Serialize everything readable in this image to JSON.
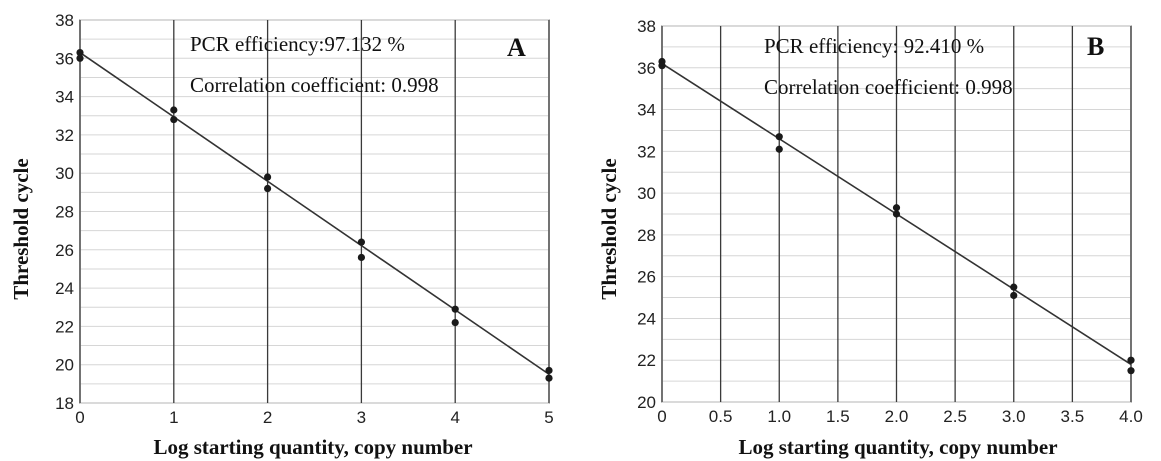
{
  "chart_data": [
    {
      "type": "scatter",
      "panel_label": "A",
      "xlabel": "Log starting quantity, copy number",
      "ylabel": "Threshold cycle",
      "xlim": [
        0,
        5
      ],
      "ylim": [
        18,
        38
      ],
      "xticks": [
        "0",
        "1",
        "2",
        "3",
        "4",
        "5"
      ],
      "yticks": [
        "18",
        "20",
        "22",
        "24",
        "26",
        "28",
        "30",
        "32",
        "34",
        "36",
        "38"
      ],
      "grid": true,
      "annotations": [
        "PCR efficiency:97.132 %",
        "Correlation coefficient: 0.998"
      ],
      "points": [
        {
          "x": 0,
          "y": 36.3
        },
        {
          "x": 0,
          "y": 36.0
        },
        {
          "x": 1,
          "y": 33.3
        },
        {
          "x": 1,
          "y": 32.8
        },
        {
          "x": 2,
          "y": 29.8
        },
        {
          "x": 2,
          "y": 29.2
        },
        {
          "x": 3,
          "y": 26.4
        },
        {
          "x": 3,
          "y": 25.6
        },
        {
          "x": 4,
          "y": 22.9
        },
        {
          "x": 4,
          "y": 22.2
        },
        {
          "x": 5,
          "y": 19.7
        },
        {
          "x": 5,
          "y": 19.3
        }
      ],
      "fit_line": [
        {
          "x": 0,
          "y": 36.3
        },
        {
          "x": 5,
          "y": 19.5
        }
      ]
    },
    {
      "type": "scatter",
      "panel_label": "B",
      "xlabel": "Log starting quantity, copy number",
      "ylabel": "Threshold cycle",
      "xlim": [
        0,
        4
      ],
      "ylim": [
        20,
        38
      ],
      "xticks": [
        "0",
        "0.5",
        "1.0",
        "1.5",
        "2.0",
        "2.5",
        "3.0",
        "3.5",
        "4.0"
      ],
      "yticks": [
        "20",
        "22",
        "24",
        "26",
        "28",
        "30",
        "32",
        "34",
        "36",
        "38"
      ],
      "grid": true,
      "annotations": [
        "PCR efficiency:  92.410 %",
        "Correlation coefficient: 0.998"
      ],
      "points": [
        {
          "x": 0,
          "y": 36.3
        },
        {
          "x": 0,
          "y": 36.1
        },
        {
          "x": 1,
          "y": 32.7
        },
        {
          "x": 1,
          "y": 32.1
        },
        {
          "x": 2,
          "y": 29.3
        },
        {
          "x": 2,
          "y": 29.0
        },
        {
          "x": 3,
          "y": 25.5
        },
        {
          "x": 3,
          "y": 25.1
        },
        {
          "x": 4,
          "y": 22.0
        },
        {
          "x": 4,
          "y": 21.5
        }
      ],
      "fit_line": [
        {
          "x": 0,
          "y": 36.2
        },
        {
          "x": 4,
          "y": 21.8
        }
      ]
    }
  ]
}
